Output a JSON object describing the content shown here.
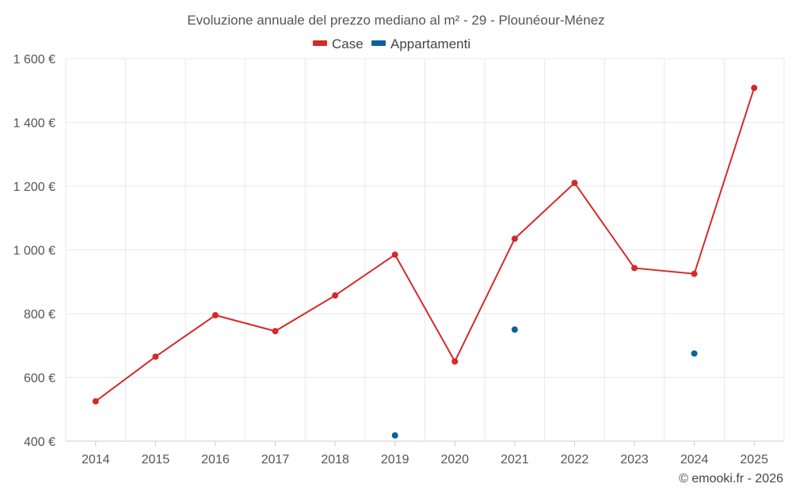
{
  "chart_data": {
    "type": "line",
    "title": "Evoluzione annuale del prezzo mediano al m² - 29 - Plounéour-Ménez",
    "categories": [
      "2014",
      "2015",
      "2016",
      "2017",
      "2018",
      "2019",
      "2020",
      "2021",
      "2022",
      "2023",
      "2024",
      "2025"
    ],
    "series": [
      {
        "name": "Case",
        "color": "#d42a2a",
        "values": [
          525,
          665,
          795,
          745,
          857,
          985,
          650,
          1035,
          1210,
          943,
          925,
          1508
        ]
      },
      {
        "name": "Appartamenti",
        "color": "#0b629b",
        "values": [
          null,
          null,
          null,
          null,
          null,
          418,
          null,
          750,
          null,
          null,
          675,
          null
        ]
      }
    ],
    "ylim": [
      400,
      1600
    ],
    "yticks": [
      400,
      600,
      800,
      1000,
      1200,
      1400,
      1600
    ],
    "ytick_labels": [
      "400 €",
      "600 €",
      "800 €",
      "1 000 €",
      "1 200 €",
      "1 400 €",
      "1 600 €"
    ],
    "xlabel": "",
    "ylabel": "",
    "grid": true,
    "legend_position": "top-center"
  },
  "credit": "© emooki.fr - 2026"
}
